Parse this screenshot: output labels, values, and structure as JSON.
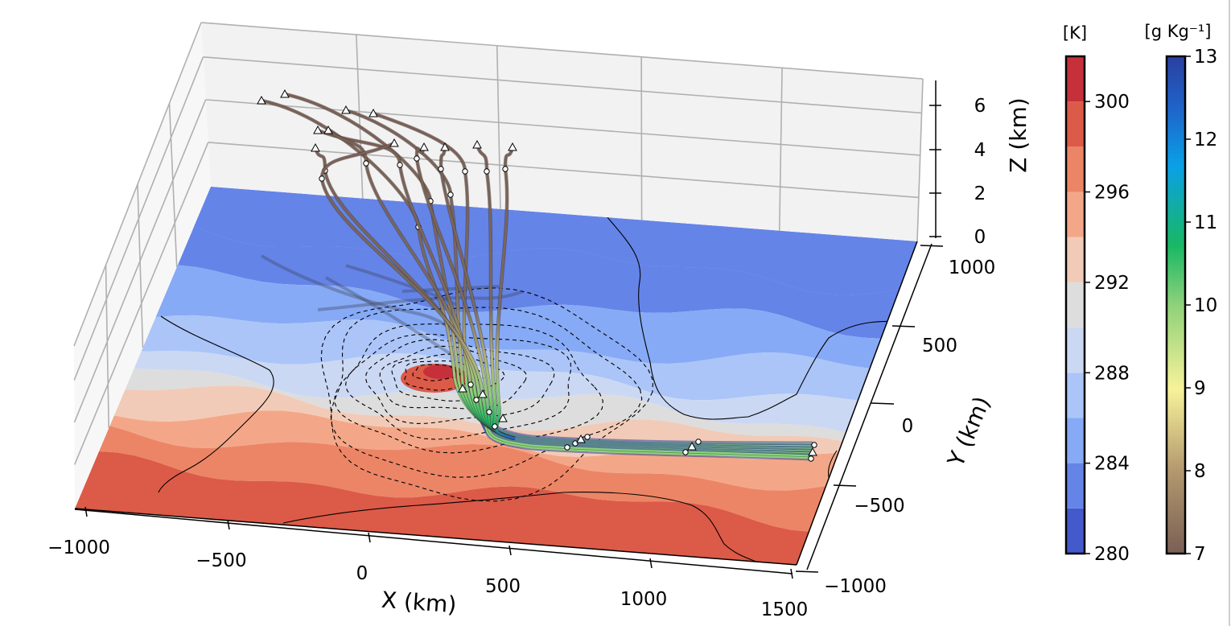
{
  "chart_data": {
    "type": "3d-trajectory-contour",
    "x_axis": {
      "label": "X (km)",
      "ticks": [
        "−1000",
        "−500",
        "0",
        "500",
        "1000",
        "1500"
      ],
      "range": [
        -1000,
        1500
      ]
    },
    "y_axis": {
      "label": "Y (km)",
      "ticks": [
        "−1000",
        "−500",
        "0",
        "500",
        "1000"
      ],
      "range": [
        -1000,
        1000
      ]
    },
    "z_axis": {
      "label": "Z (km)",
      "ticks": [
        "0",
        "2",
        "4",
        "6"
      ],
      "range": [
        0,
        6.5
      ]
    },
    "temperature_colorbar": {
      "unit": "[K]",
      "ticks": [
        "280",
        "284",
        "288",
        "292",
        "296",
        "300"
      ],
      "range": [
        280,
        302
      ],
      "levels": [
        280,
        282,
        284,
        286,
        288,
        290,
        292,
        294,
        296,
        298,
        300
      ],
      "colors": [
        "#4459cc",
        "#6584e8",
        "#87aaf6",
        "#abc5f8",
        "#cbd8f3",
        "#dddddd",
        "#f1cbb8",
        "#f4a788",
        "#ec8566",
        "#dc5a48",
        "#c5303a"
      ]
    },
    "humidity_colorbar": {
      "unit": "[g Kg⁻¹]",
      "ticks": [
        "7",
        "8",
        "9",
        "10",
        "11",
        "12",
        "13"
      ],
      "range": [
        7,
        13
      ]
    },
    "surface_temperature_bands": [
      {
        "x_near": [
          -1000,
          1500
        ],
        "x_far": [
          -1000,
          1500
        ],
        "level": 298
      },
      {
        "level": 296
      },
      {
        "level": 294
      },
      {
        "level": 292
      },
      {
        "level": 290
      },
      {
        "level": 288
      },
      {
        "level": 286
      },
      {
        "level": 284
      },
      {
        "level": 282
      }
    ],
    "pressure_contours": {
      "center": [
        150,
        150
      ],
      "count": 9,
      "style": "dashed"
    },
    "trajectory_count": 12,
    "grid": true
  },
  "colors": {
    "trajectory_high": "#7a5f55",
    "trajectory_low_dry": "#2b3fa0",
    "trajectory_low_moist": "#8fd17a",
    "pane_back": "#f2f2f2",
    "pane_side": "#f7f7f7",
    "grid": "#b0b0b0"
  }
}
